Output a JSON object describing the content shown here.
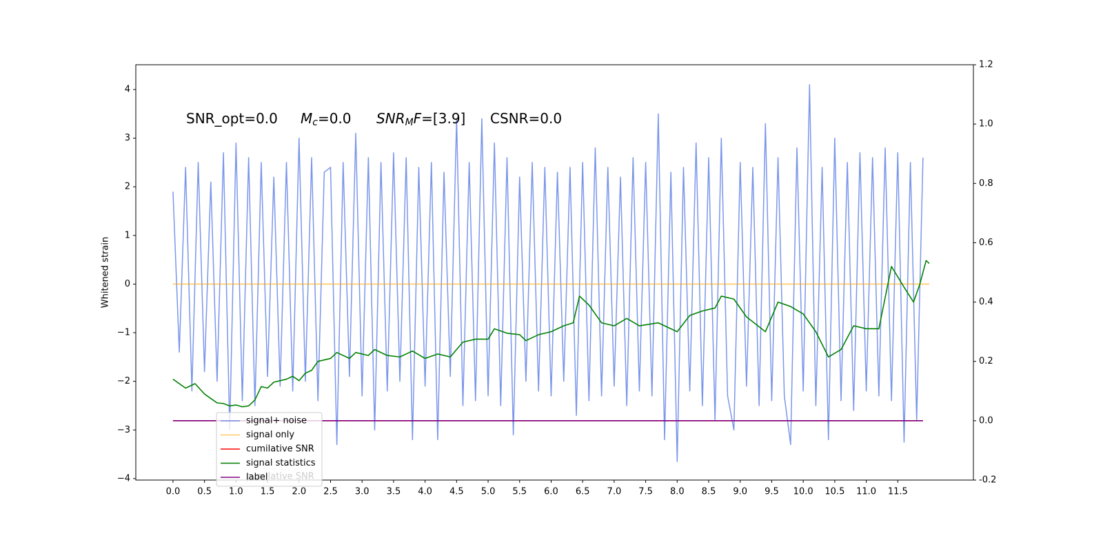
{
  "chart_data": {
    "type": "line",
    "ylabel": "Whitened strain",
    "annotations": [
      {
        "text": "SNR_opt=0.0"
      },
      {
        "base": "M",
        "sub": "c",
        "rest": "=0.0"
      },
      {
        "base": "SNR",
        "sub": "M",
        "rest2": "F",
        "rest": "=[3.9]"
      },
      {
        "text": "CSNR=0.0"
      }
    ],
    "background_text": "cumilative SNR",
    "xlim": [
      -0.59,
      12.7
    ],
    "ylim": [
      -4.03,
      4.51
    ],
    "y2lim": [
      -0.2,
      1.2
    ],
    "xticks": [
      {
        "value": 0,
        "label": "0.0"
      },
      0.5,
      {
        "value": 1,
        "label": "1.0"
      },
      1.5,
      {
        "value": 2,
        "label": "2.0"
      },
      2.5,
      {
        "value": 3,
        "label": "3.0"
      },
      3.5,
      {
        "value": 4,
        "label": "4.0"
      },
      4.5,
      {
        "value": 5,
        "label": "5.0"
      },
      5.5,
      {
        "value": 6,
        "label": "6.0"
      },
      6.5,
      {
        "value": 7,
        "label": "7.0"
      },
      7.5,
      {
        "value": 8,
        "label": "8.0"
      },
      8.5,
      {
        "value": 9,
        "label": "9.0"
      },
      9.5,
      {
        "value": 10,
        "label": "10.0"
      },
      10.5,
      {
        "value": 11,
        "label": "11.0"
      },
      11.5
    ],
    "yticks": [
      {
        "value": -4,
        "label": "−4"
      },
      {
        "value": -3,
        "label": "−3"
      },
      {
        "value": -2,
        "label": "−2"
      },
      {
        "value": -1,
        "label": "−1"
      },
      0,
      1,
      2,
      3,
      4
    ],
    "y2ticks": [
      -0.2,
      {
        "value": 0,
        "label": "0.0"
      },
      0.2,
      0.4,
      0.6,
      0.8,
      {
        "value": 1,
        "label": "1.0"
      },
      1.2
    ],
    "legend_loc": "lower left",
    "series": [
      {
        "name": "signal+ noise",
        "color": "royalblue",
        "x": [
          0,
          0.1,
          0.2,
          0.3,
          0.4,
          0.5,
          0.6,
          0.7,
          0.8,
          0.9,
          1,
          1.1,
          1.2,
          1.3,
          1.4,
          1.5,
          1.6,
          1.7,
          1.8,
          1.9,
          2,
          2.1,
          2.2,
          2.3,
          2.4,
          2.5,
          2.6,
          2.7,
          2.8,
          2.9,
          3,
          3.1,
          3.2,
          3.3,
          3.4,
          3.5,
          3.6,
          3.7,
          3.8,
          3.9,
          4,
          4.1,
          4.2,
          4.3,
          4.4,
          4.5,
          4.6,
          4.7,
          4.8,
          4.9,
          5,
          5.1,
          5.2,
          5.3,
          5.4,
          5.5,
          5.6,
          5.7,
          5.8,
          5.9,
          6,
          6.1,
          6.2,
          6.3,
          6.4,
          6.5,
          6.6,
          6.7,
          6.8,
          6.9,
          7,
          7.1,
          7.2,
          7.3,
          7.4,
          7.5,
          7.6,
          7.7,
          7.8,
          7.9,
          8,
          8.1,
          8.2,
          8.3,
          8.4,
          8.5,
          8.6,
          8.7,
          8.8,
          8.9,
          9,
          9.1,
          9.2,
          9.3,
          9.4,
          9.5,
          9.6,
          9.7,
          9.8,
          9.9,
          10,
          10.1,
          10.2,
          10.3,
          10.4,
          10.5,
          10.6,
          10.7,
          10.8,
          10.9,
          11,
          11.1,
          11.2,
          11.3,
          11.4,
          11.5,
          11.6,
          11.7,
          11.8,
          11.9
        ],
        "values": [
          1.9,
          -1.4,
          2.4,
          -2.2,
          2.5,
          -1.8,
          2.1,
          -2.0,
          2.7,
          -3.0,
          2.9,
          -2.4,
          2.6,
          -2.5,
          2.5,
          -1.9,
          2.2,
          -2.1,
          2.5,
          -2.2,
          3.0,
          -2.0,
          2.6,
          -2.4,
          2.3,
          2.4,
          -3.3,
          2.5,
          -1.9,
          3.1,
          -2.3,
          2.6,
          -3.0,
          2.5,
          -2.2,
          2.7,
          -2.0,
          2.6,
          -3.2,
          2.4,
          -2.1,
          2.5,
          -3.2,
          2.3,
          -1.9,
          3.4,
          -2.5,
          2.5,
          -2.4,
          3.4,
          -2.3,
          2.9,
          -2.5,
          2.6,
          -3.1,
          2.2,
          -2.0,
          2.5,
          -2.2,
          2.4,
          -2.3,
          2.3,
          -2.0,
          2.4,
          -2.7,
          2.5,
          -2.4,
          2.8,
          -2.3,
          2.4,
          -2.1,
          2.2,
          -2.5,
          2.6,
          -2.2,
          2.5,
          -2.3,
          3.5,
          -3.2,
          2.3,
          -3.65,
          2.4,
          -2.2,
          2.9,
          -2.5,
          2.6,
          -2.8,
          3.0,
          -2.3,
          -3.0,
          2.5,
          -2.1,
          2.4,
          -2.5,
          3.3,
          -2.4,
          2.6,
          -2.3,
          -3.3,
          2.8,
          -2.2,
          4.1,
          -2.5,
          2.4,
          -3.2,
          3.0,
          -2.4,
          2.5,
          -2.6,
          2.7,
          -2.2,
          2.6,
          -2.3,
          2.8,
          -2.4,
          2.7,
          -3.25,
          2.5,
          -2.8,
          2.6
        ]
      },
      {
        "name": "signal only",
        "color": "orange",
        "x": [
          0,
          12
        ],
        "values": [
          0,
          0
        ]
      },
      {
        "name": "cumilative SNR",
        "color": "red",
        "axis": "y2",
        "x": [
          0,
          11.9
        ],
        "values": [
          0,
          0
        ]
      },
      {
        "name": "signal statistics",
        "color": "green",
        "axis": "y2",
        "x": [
          0,
          0.2,
          0.35,
          0.5,
          0.6,
          0.7,
          0.8,
          0.9,
          1,
          1.1,
          1.2,
          1.3,
          1.4,
          1.5,
          1.6,
          1.8,
          1.9,
          2,
          2.1,
          2.2,
          2.3,
          2.5,
          2.6,
          2.8,
          2.9,
          3.1,
          3.2,
          3.4,
          3.6,
          3.7,
          3.8,
          4,
          4.2,
          4.4,
          4.6,
          4.8,
          5,
          5.1,
          5.3,
          5.5,
          5.6,
          5.8,
          6,
          6.2,
          6.35,
          6.45,
          6.6,
          6.8,
          7,
          7.2,
          7.4,
          7.7,
          8,
          8.2,
          8.4,
          8.6,
          8.7,
          8.9,
          9.1,
          9.4,
          9.6,
          9.8,
          10,
          10.2,
          10.4,
          10.6,
          10.8,
          11,
          11.2,
          11.4,
          11.6,
          11.75,
          11.85,
          11.95,
          12
        ],
        "values": [
          0.14,
          0.11,
          0.125,
          0.09,
          0.075,
          0.06,
          0.058,
          0.05,
          0.053,
          0.047,
          0.05,
          0.07,
          0.115,
          0.11,
          0.13,
          0.14,
          0.15,
          0.135,
          0.16,
          0.17,
          0.2,
          0.21,
          0.23,
          0.21,
          0.23,
          0.22,
          0.24,
          0.22,
          0.215,
          0.225,
          0.235,
          0.21,
          0.225,
          0.215,
          0.265,
          0.275,
          0.275,
          0.31,
          0.295,
          0.29,
          0.27,
          0.29,
          0.3,
          0.32,
          0.33,
          0.42,
          0.39,
          0.33,
          0.32,
          0.345,
          0.32,
          0.33,
          0.3,
          0.355,
          0.37,
          0.38,
          0.42,
          0.41,
          0.35,
          0.3,
          0.4,
          0.385,
          0.36,
          0.3,
          0.215,
          0.24,
          0.32,
          0.31,
          0.31,
          0.52,
          0.45,
          0.4,
          0.46,
          0.54,
          0.53
        ]
      },
      {
        "name": "label",
        "color": "purple",
        "axis": "y2",
        "x": [
          0,
          11.9
        ],
        "values": [
          0,
          0
        ]
      }
    ]
  }
}
